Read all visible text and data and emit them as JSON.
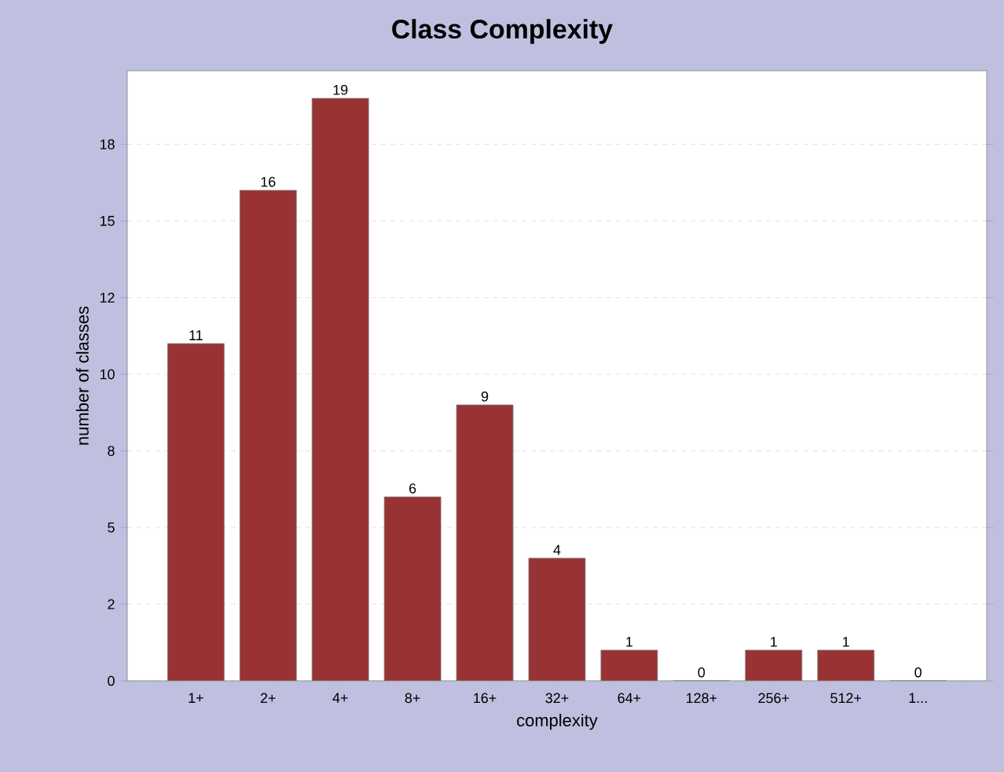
{
  "chart_data": {
    "type": "bar",
    "title": "Class Complexity",
    "xlabel": "complexity",
    "ylabel": "number of classes",
    "categories": [
      "1+",
      "2+",
      "4+",
      "8+",
      "16+",
      "32+",
      "64+",
      "128+",
      "256+",
      "512+",
      "1..."
    ],
    "values": [
      11,
      16,
      19,
      6,
      9,
      4,
      1,
      0,
      1,
      1,
      0
    ],
    "color": "#993333",
    "data_labels": true,
    "ylim": [
      0,
      19.9
    ],
    "yticks": [
      0,
      {
        "value": 2.5,
        "label": "2"
      },
      5,
      {
        "value": 7.5,
        "label": "8"
      },
      10,
      {
        "value": 12.5,
        "label": "12"
      },
      15,
      {
        "value": 17.5,
        "label": "18"
      }
    ],
    "grid": "y"
  }
}
